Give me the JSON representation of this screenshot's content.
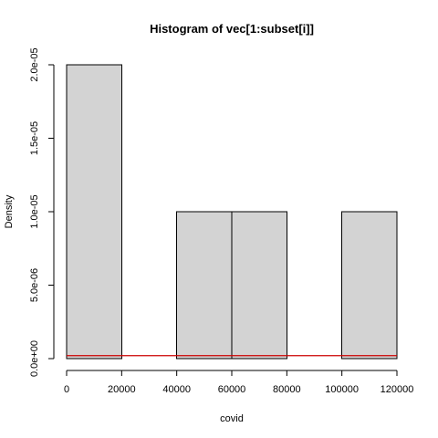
{
  "chart_data": {
    "type": "bar",
    "title": "Histogram of vec[1:subset[i]]",
    "xlabel": "covid",
    "ylabel": "Density",
    "xlim": [
      0,
      120000
    ],
    "ylim": [
      0,
      2e-05
    ],
    "bins": [
      {
        "x0": 0,
        "x1": 20000,
        "density": 2e-05
      },
      {
        "x0": 20000,
        "x1": 40000,
        "density": 0
      },
      {
        "x0": 40000,
        "x1": 60000,
        "density": 1e-05
      },
      {
        "x0": 60000,
        "x1": 80000,
        "density": 1e-05
      },
      {
        "x0": 80000,
        "x1": 100000,
        "density": 0
      },
      {
        "x0": 100000,
        "x1": 120000,
        "density": 1e-05
      }
    ],
    "x_ticks": [
      {
        "value": 0,
        "label": "0"
      },
      {
        "value": 20000,
        "label": "20000"
      },
      {
        "value": 40000,
        "label": "40000"
      },
      {
        "value": 60000,
        "label": "60000"
      },
      {
        "value": 80000,
        "label": "80000"
      },
      {
        "value": 100000,
        "label": "100000"
      },
      {
        "value": 120000,
        "label": "120000"
      }
    ],
    "y_ticks": [
      {
        "value": 0,
        "label": "0.0e+00"
      },
      {
        "value": 5e-06,
        "label": "5.0e-06"
      },
      {
        "value": 1e-05,
        "label": "1.0e-05"
      },
      {
        "value": 1.5e-05,
        "label": "1.5e-05"
      },
      {
        "value": 2e-05,
        "label": "2.0e-05"
      }
    ],
    "reference_line": {
      "y": 2e-07,
      "x_range": [
        0,
        120000
      ],
      "color": "#cc0000"
    },
    "bar_fill": "#d3d3d3",
    "bar_stroke": "#000000",
    "grid": false
  }
}
